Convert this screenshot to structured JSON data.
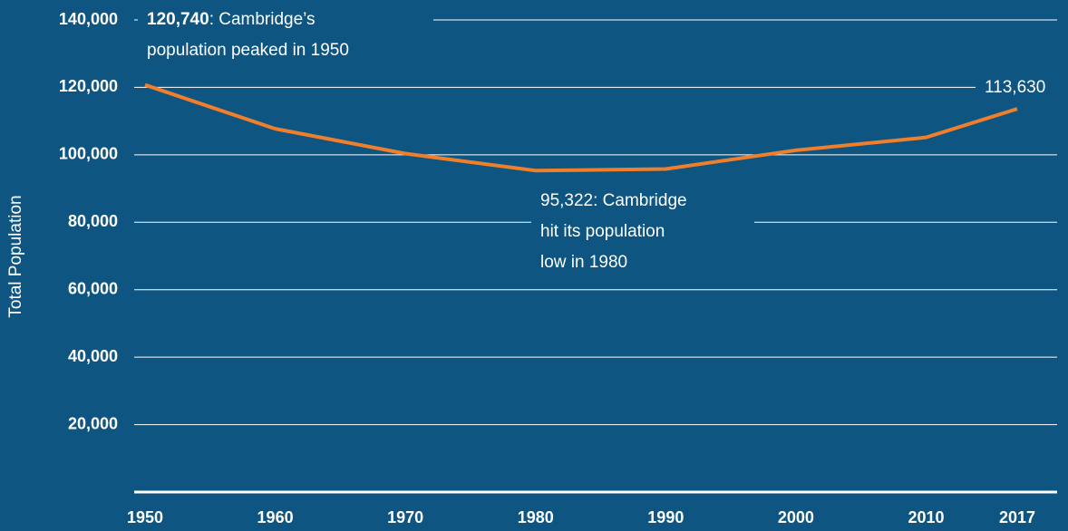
{
  "chart_data": {
    "type": "line",
    "y_label": "Total Population",
    "x": [
      1950,
      1960,
      1970,
      1980,
      1990,
      2000,
      2010,
      2017
    ],
    "xlim": [
      1950,
      2017
    ],
    "xticks": [
      1950,
      1960,
      1970,
      1980,
      1990,
      2000,
      2010,
      2017
    ],
    "series": [
      {
        "name": "Total Population",
        "color": "#f07f2c",
        "values": [
          120740,
          107716,
          100361,
          95322,
          95802,
          101355,
          105162,
          113630
        ]
      }
    ],
    "ylim": [
      0,
      140000
    ],
    "yticks": [
      {
        "value": 20000,
        "label": "20,000"
      },
      {
        "value": 40000,
        "label": "40,000"
      },
      {
        "value": 60000,
        "label": "60,000"
      },
      {
        "value": 80000,
        "label": "80,000"
      },
      {
        "value": 100000,
        "label": "100,000"
      },
      {
        "value": 120000,
        "label": "120,000"
      },
      {
        "value": 140000,
        "label": "140,000"
      }
    ],
    "grid": true,
    "annotations": [
      {
        "bold": "120,740",
        "lines": [
          ": Cambridge’s",
          "population peaked in 1950"
        ]
      },
      {
        "lines": [
          "95,322: Cambridge",
          "hit its population",
          "low in 1980"
        ]
      },
      {
        "lines": [
          "113,630"
        ]
      }
    ]
  }
}
